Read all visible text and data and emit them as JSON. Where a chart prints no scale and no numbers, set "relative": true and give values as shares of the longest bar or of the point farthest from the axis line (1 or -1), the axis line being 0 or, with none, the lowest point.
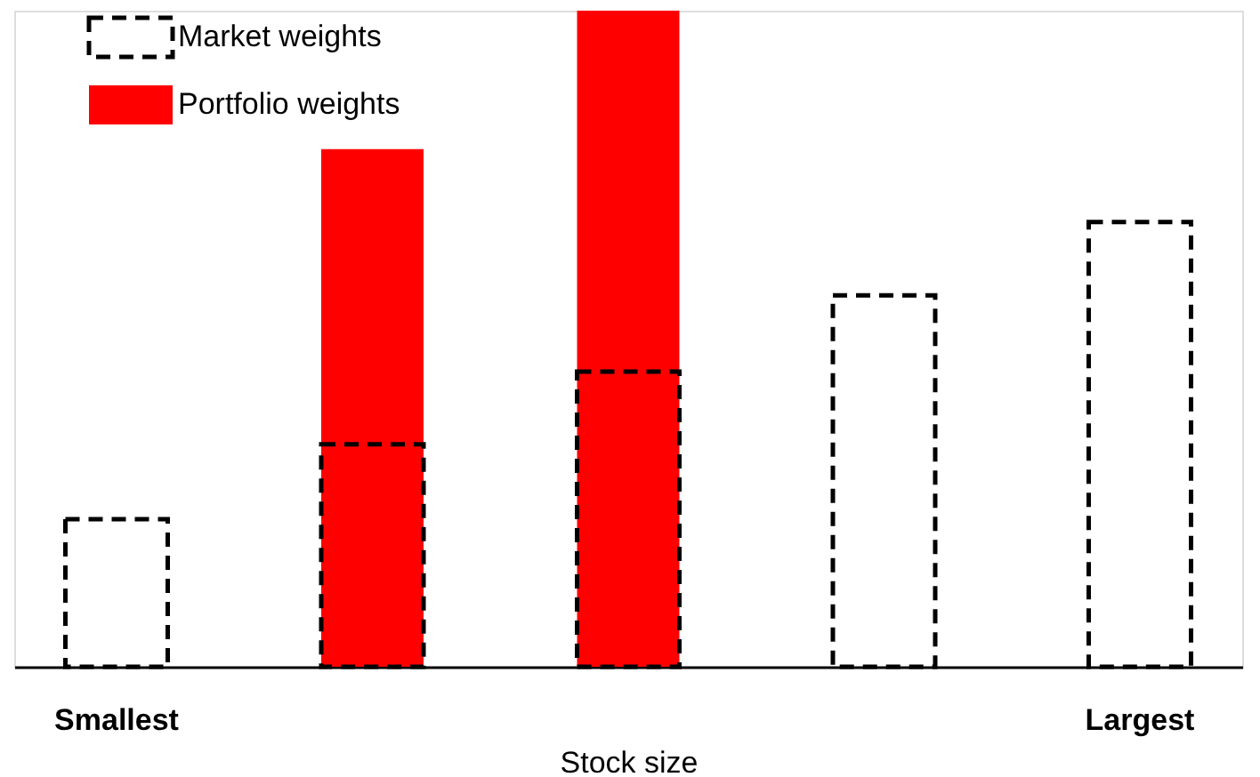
{
  "chart_data": {
    "type": "bar",
    "relative": true,
    "xlabel": "Stock size",
    "categories": [
      "Smallest",
      null,
      null,
      null,
      "Largest"
    ],
    "series": [
      {
        "name": "Portfolio weights",
        "color": "#ff0000",
        "values": [
          null,
          0.789,
          1,
          null,
          null
        ]
      },
      {
        "name": "Market weights",
        "color": "#000000",
        "line_style": "dashed",
        "values": [
          0.225,
          0.339,
          0.45,
          0.566,
          0.678
        ]
      }
    ],
    "legend": "top left",
    "grid": false
  }
}
